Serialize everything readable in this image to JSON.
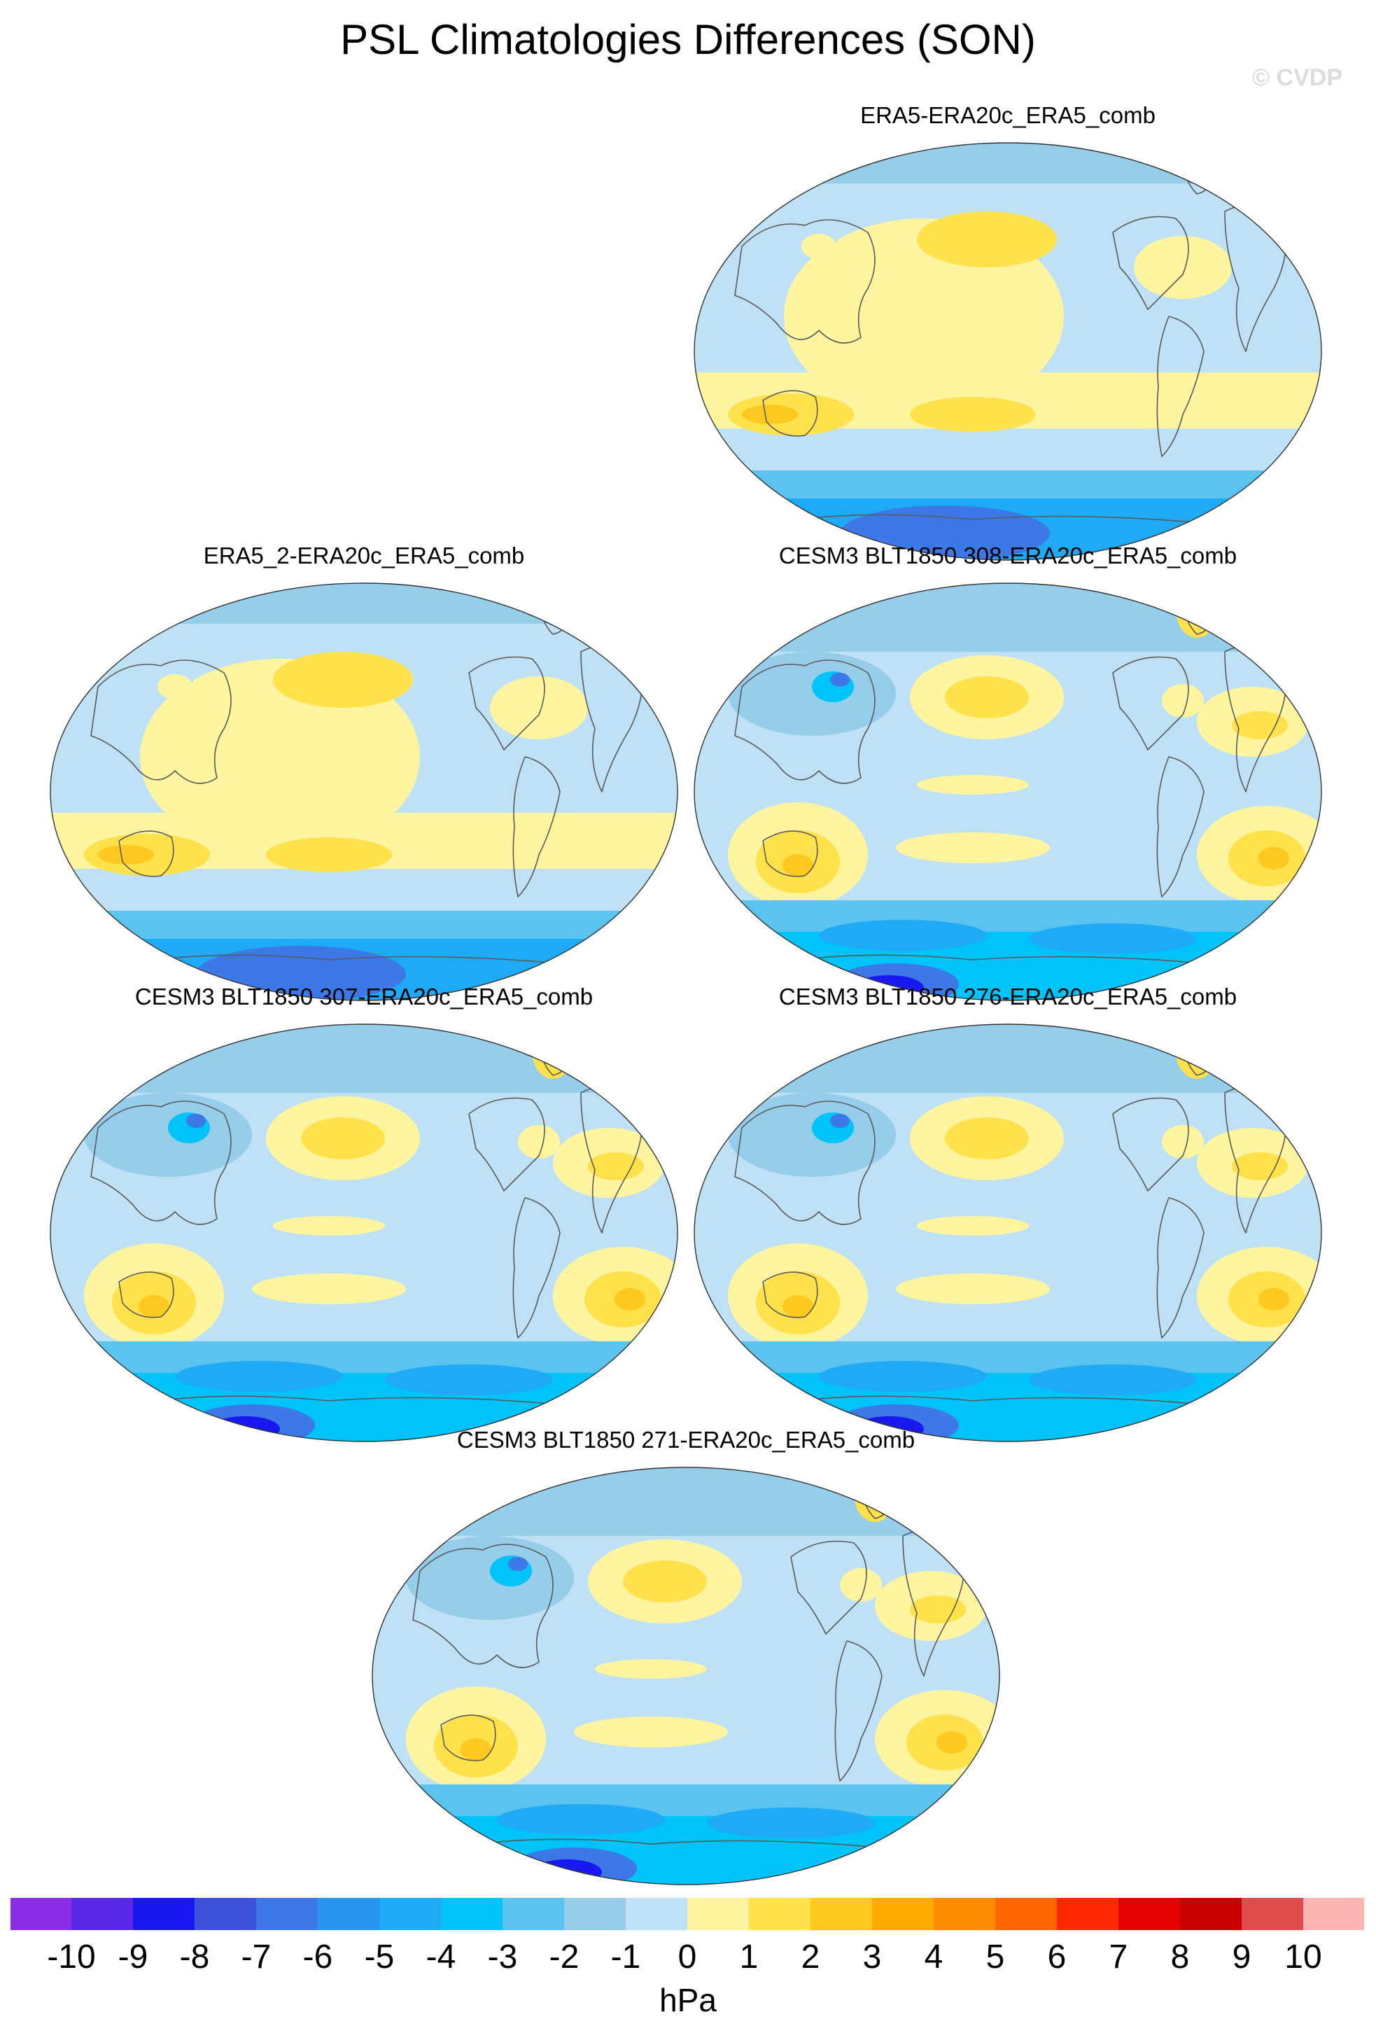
{
  "figure": {
    "title": "PSL Climatologies Differences (SON)",
    "watermark": "© CVDP"
  },
  "panels": [
    {
      "title": "ERA5-ERA20c_ERA5_comb",
      "variant": "reanalysis",
      "strength": 0.8
    },
    {
      "title": "ERA5_2-ERA20c_ERA5_comb",
      "variant": "reanalysis",
      "strength": 0.85
    },
    {
      "title": "CESM3 BLT1850 308-ERA20c_ERA5_comb",
      "variant": "model",
      "strength": 1.0
    },
    {
      "title": "CESM3 BLT1850 307-ERA20c_ERA5_comb",
      "variant": "model",
      "strength": 0.95
    },
    {
      "title": "CESM3 BLT1850 276-ERA20c_ERA5_comb",
      "variant": "model",
      "strength": 0.95
    },
    {
      "title": "CESM3 BLT1850 271-ERA20c_ERA5_comb",
      "variant": "model",
      "strength": 0.85
    }
  ],
  "colorbar": {
    "units": "hPa",
    "labels": [
      "-10",
      "-9",
      "-8",
      "-7",
      "-6",
      "-5",
      "-4",
      "-3",
      "-2",
      "-1",
      "0",
      "1",
      "2",
      "3",
      "4",
      "5",
      "6",
      "7",
      "8",
      "9",
      "10"
    ],
    "colors": [
      "#8c2ee8",
      "#5a28e8",
      "#1818f0",
      "#3c50dc",
      "#3c78e6",
      "#2896f0",
      "#1eaaf5",
      "#00c3fa",
      "#5ac3f0",
      "#96cdeb",
      "#bee1f5",
      "#fff5a0",
      "#ffe14b",
      "#ffc81e",
      "#ffaa00",
      "#ff8c00",
      "#ff6400",
      "#ff2800",
      "#e60000",
      "#c80000",
      "#e14b4b",
      "#ffb4b4"
    ]
  }
}
